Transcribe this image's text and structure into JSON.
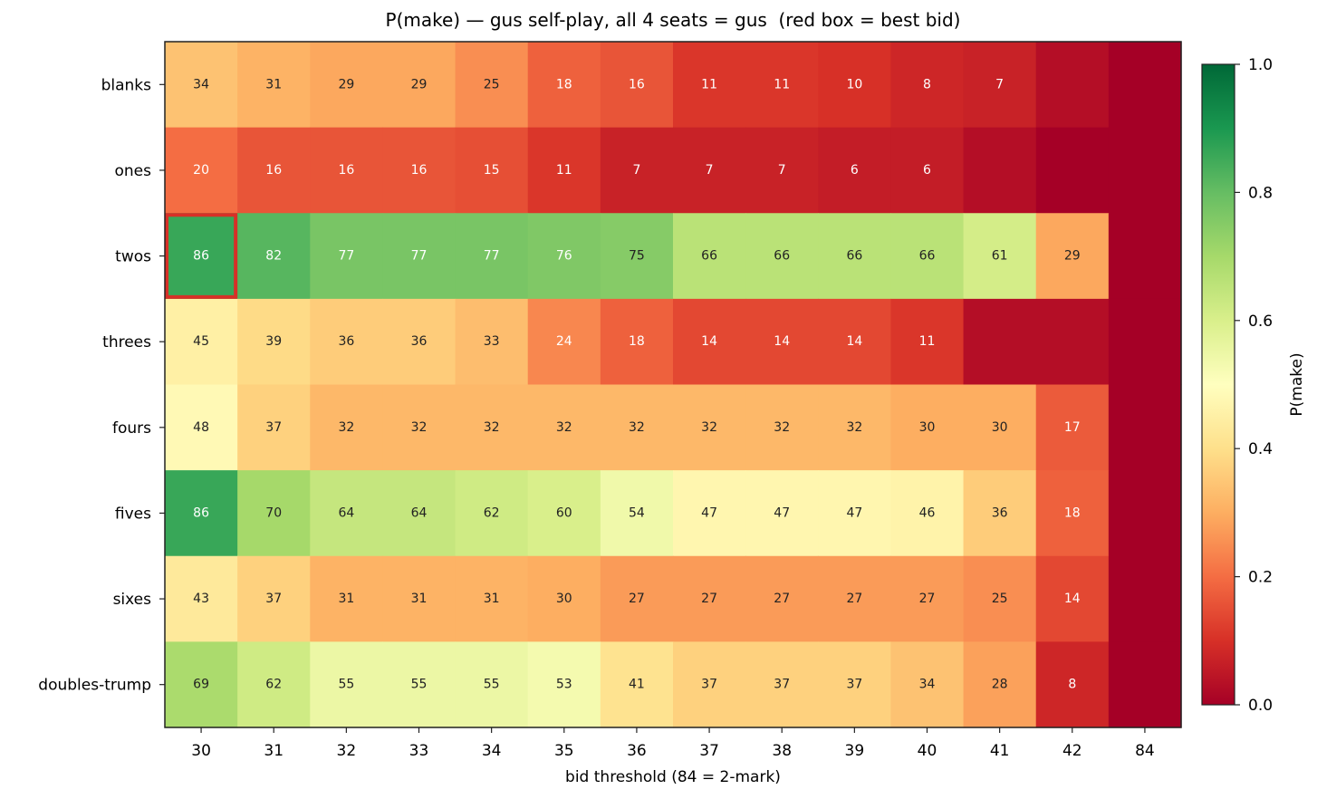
{
  "chart_data": {
    "type": "heatmap",
    "title": "P(make) — gus self-play, all 4 seats = gus  (red box = best bid)",
    "xlabel": "bid threshold (84 = 2-mark)",
    "ylabel": "",
    "x_categories": [
      "30",
      "31",
      "32",
      "33",
      "34",
      "35",
      "36",
      "37",
      "38",
      "39",
      "40",
      "41",
      "42",
      "84"
    ],
    "y_categories": [
      "blanks",
      "ones",
      "twos",
      "threes",
      "fours",
      "fives",
      "sixes",
      "doubles-trump"
    ],
    "values_percent": [
      [
        34,
        31,
        29,
        29,
        25,
        18,
        16,
        11,
        11,
        10,
        8,
        7,
        3,
        0
      ],
      [
        20,
        16,
        16,
        16,
        15,
        11,
        7,
        7,
        7,
        6,
        6,
        3,
        0,
        0
      ],
      [
        86,
        82,
        77,
        77,
        77,
        76,
        75,
        66,
        66,
        66,
        66,
        61,
        29,
        0
      ],
      [
        45,
        39,
        36,
        36,
        33,
        24,
        18,
        14,
        14,
        14,
        11,
        3,
        3,
        0
      ],
      [
        48,
        37,
        32,
        32,
        32,
        32,
        32,
        32,
        32,
        32,
        30,
        30,
        17,
        0
      ],
      [
        86,
        70,
        64,
        64,
        62,
        60,
        54,
        47,
        47,
        47,
        46,
        36,
        18,
        0
      ],
      [
        43,
        37,
        31,
        31,
        31,
        30,
        27,
        27,
        27,
        27,
        27,
        25,
        14,
        0
      ],
      [
        69,
        62,
        55,
        55,
        55,
        53,
        41,
        37,
        37,
        37,
        34,
        28,
        8,
        0
      ]
    ],
    "labels": [
      [
        "34",
        "31",
        "29",
        "29",
        "25",
        "18",
        "16",
        "11",
        "11",
        "10",
        "8",
        "7",
        null,
        null
      ],
      [
        "20",
        "16",
        "16",
        "16",
        "15",
        "11",
        "7",
        "7",
        "7",
        "6",
        "6",
        null,
        null,
        null
      ],
      [
        "86",
        "82",
        "77",
        "77",
        "77",
        "76",
        "75",
        "66",
        "66",
        "66",
        "66",
        "61",
        "29",
        null
      ],
      [
        "45",
        "39",
        "36",
        "36",
        "33",
        "24",
        "18",
        "14",
        "14",
        "14",
        "11",
        null,
        null,
        null
      ],
      [
        "48",
        "37",
        "32",
        "32",
        "32",
        "32",
        "32",
        "32",
        "32",
        "32",
        "30",
        "30",
        "17",
        null
      ],
      [
        "86",
        "70",
        "64",
        "64",
        "62",
        "60",
        "54",
        "47",
        "47",
        "47",
        "46",
        "36",
        "18",
        null
      ],
      [
        "43",
        "37",
        "31",
        "31",
        "31",
        "30",
        "27",
        "27",
        "27",
        "27",
        "27",
        "25",
        "14",
        null
      ],
      [
        "69",
        "62",
        "55",
        "55",
        "55",
        "53",
        "41",
        "37",
        "37",
        "37",
        "34",
        "28",
        "8",
        null
      ]
    ],
    "best_bid": {
      "row": "twos",
      "col": "30"
    },
    "colormap": "RdYlGn",
    "colorbar": {
      "label": "P(make)",
      "range": [
        0.0,
        1.0
      ],
      "ticks": [
        "0.0",
        "0.2",
        "0.4",
        "0.6",
        "0.8",
        "1.0"
      ]
    },
    "highlight_color": "#d73027"
  }
}
